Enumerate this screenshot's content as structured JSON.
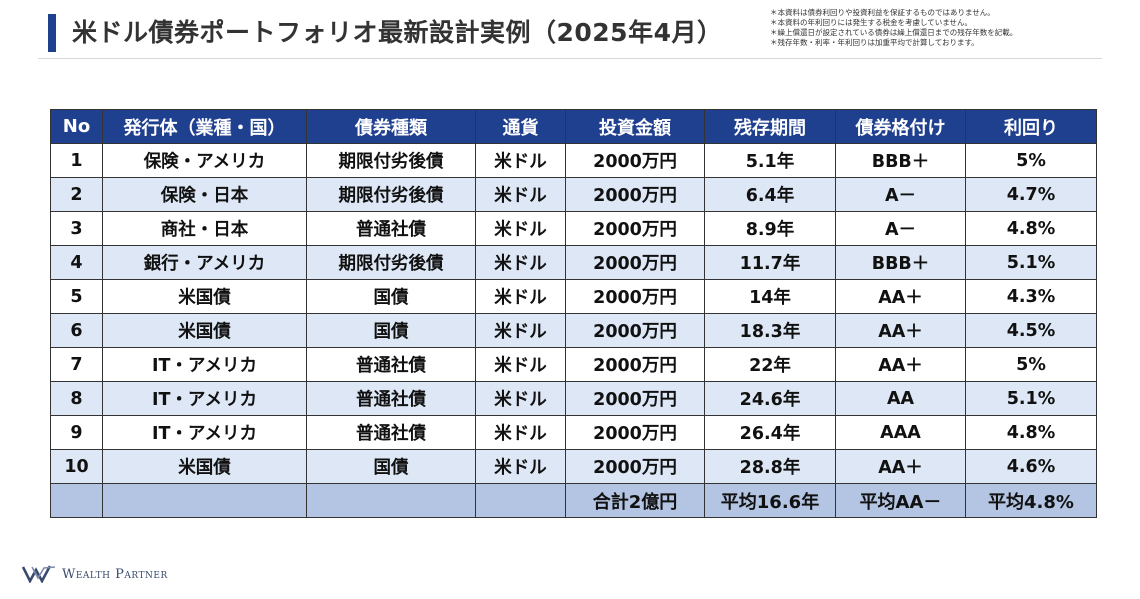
{
  "title": "米ドル債券ポートフォリオ最新設計実例（2025年4月）",
  "notes": [
    "＊本資料は債券利回りや投資利益を保証するものではありません。",
    "＊本資料の年利回りには発生する税金を考慮していません。",
    "＊繰上償還日が設定されている債券は繰上償還日までの残存年数を記載。",
    "＊残存年数・利率・年利回りは加重平均で計算しております。"
  ],
  "table": {
    "headers": [
      "No",
      "発行体（業種・国）",
      "債券種類",
      "通貨",
      "投資金額",
      "残存期間",
      "債券格付け",
      "利回り"
    ],
    "rows": [
      [
        "1",
        "保険・アメリカ",
        "期限付劣後債",
        "米ドル",
        "2000万円",
        "5.1年",
        "BBB＋",
        "5%"
      ],
      [
        "2",
        "保険・日本",
        "期限付劣後債",
        "米ドル",
        "2000万円",
        "6.4年",
        "A－",
        "4.7%"
      ],
      [
        "3",
        "商社・日本",
        "普通社債",
        "米ドル",
        "2000万円",
        "8.9年",
        "A－",
        "4.8%"
      ],
      [
        "4",
        "銀行・アメリカ",
        "期限付劣後債",
        "米ドル",
        "2000万円",
        "11.7年",
        "BBB＋",
        "5.1%"
      ],
      [
        "5",
        "米国債",
        "国債",
        "米ドル",
        "2000万円",
        "14年",
        "AA＋",
        "4.3%"
      ],
      [
        "6",
        "米国債",
        "国債",
        "米ドル",
        "2000万円",
        "18.3年",
        "AA＋",
        "4.5%"
      ],
      [
        "7",
        "IT・アメリカ",
        "普通社債",
        "米ドル",
        "2000万円",
        "22年",
        "AA＋",
        "5%"
      ],
      [
        "8",
        "IT・アメリカ",
        "普通社債",
        "米ドル",
        "2000万円",
        "24.6年",
        "AA",
        "5.1%"
      ],
      [
        "9",
        "IT・アメリカ",
        "普通社債",
        "米ドル",
        "2000万円",
        "26.4年",
        "AAA",
        "4.8%"
      ],
      [
        "10",
        "米国債",
        "国債",
        "米ドル",
        "2000万円",
        "28.8年",
        "AA＋",
        "4.6%"
      ]
    ],
    "footer": [
      "",
      "",
      "",
      "",
      "合計2億円",
      "平均16.6年",
      "平均AA－",
      "平均4.8%"
    ]
  },
  "logo": {
    "text": "Wealth Partner",
    "icon": "wealth-partner-logo-icon"
  },
  "colors": {
    "accent": "#1f3f8f",
    "row_alt": "#dde7f5",
    "footer": "#b4c5e4"
  }
}
